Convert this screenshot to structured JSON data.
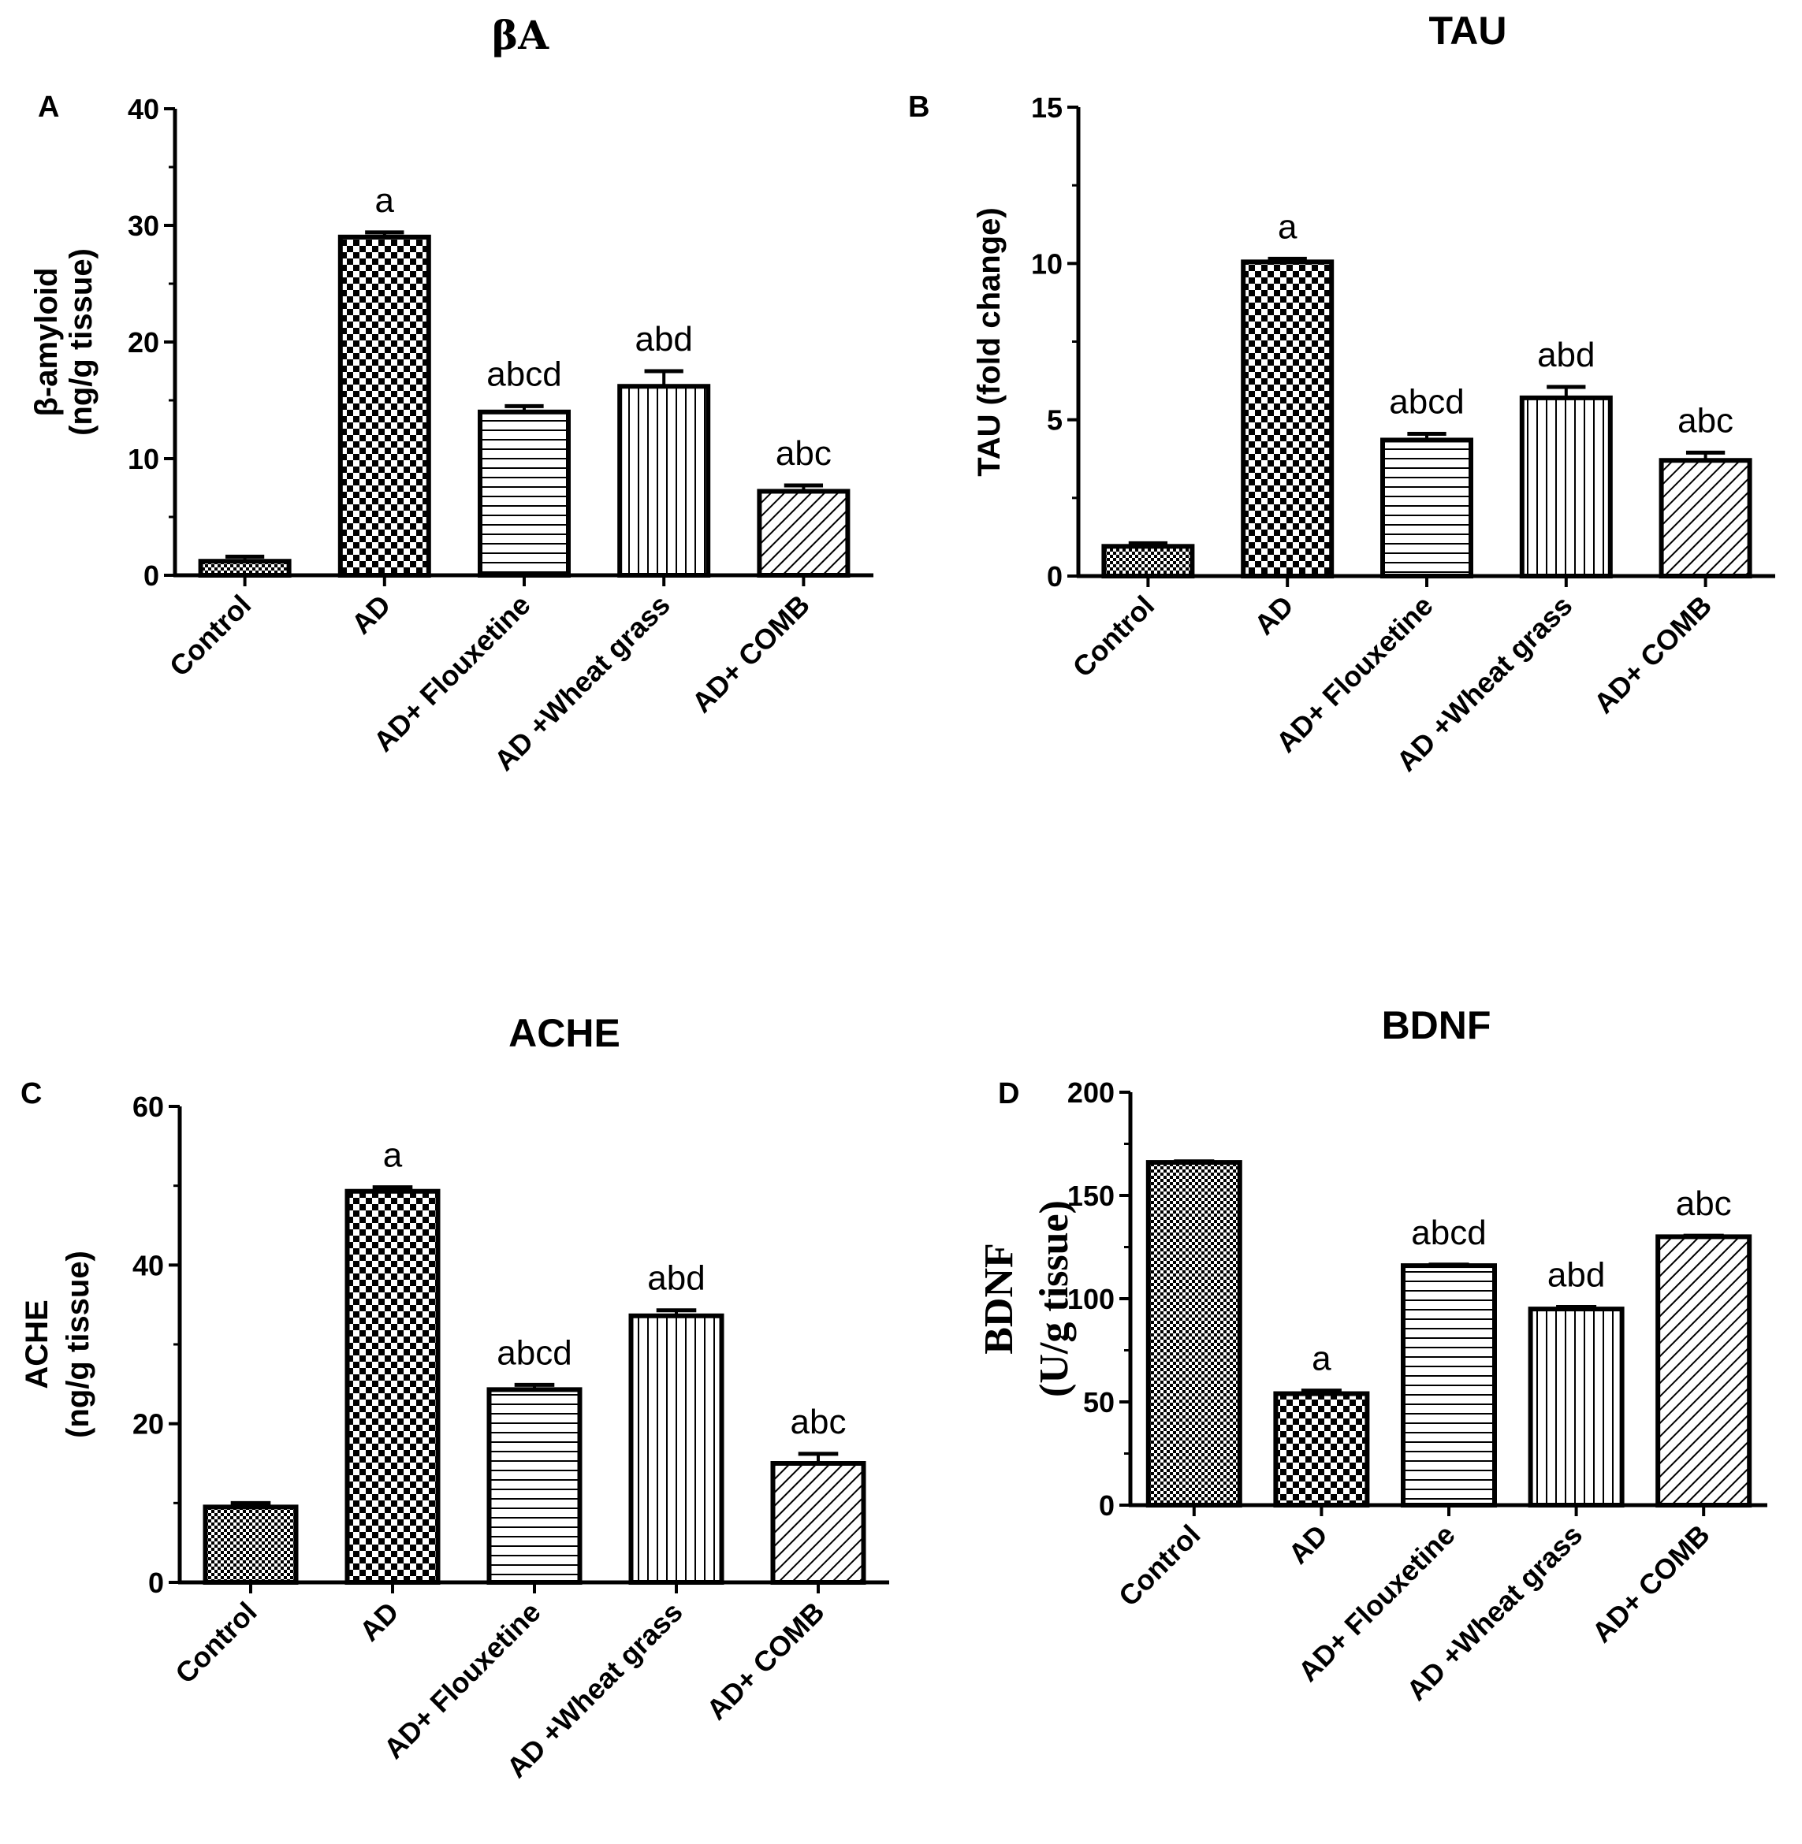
{
  "figure": {
    "panels": [
      "A",
      "B",
      "C",
      "D"
    ]
  },
  "colors": {
    "bar_stroke": "#000000",
    "background": "#ffffff"
  },
  "patterns": {
    "Control": "fine-checker",
    "AD": "checker",
    "AD+ Flouxetine": "horizontal-lines",
    "AD +Wheat grass": "vertical-lines",
    "AD+ COMB": "diagonal-lines"
  },
  "chart_data": [
    {
      "panel": "A",
      "type": "bar",
      "title": "βA",
      "ylabel_line1": "β-amyloid",
      "ylabel_line2": "(ng/g tissue)",
      "categories": [
        "Control",
        "AD",
        "AD+ Flouxetine",
        "AD +Wheat grass",
        "AD+ COMB"
      ],
      "values": [
        1.2,
        29.0,
        14.0,
        16.2,
        7.2
      ],
      "errors": [
        0.4,
        0.4,
        0.5,
        1.3,
        0.5
      ],
      "significance": [
        "",
        "a",
        "abcd",
        "abd",
        "abc"
      ],
      "ylim": [
        0,
        40
      ],
      "yticks": [
        0,
        10,
        20,
        30,
        40
      ],
      "ytick_labels": [
        "0",
        "10",
        "20",
        "30",
        "40"
      ]
    },
    {
      "panel": "B",
      "type": "bar",
      "title": "TAU",
      "ylabel_line1": "TAU (fold change)",
      "ylabel_line2": "",
      "categories": [
        "Control",
        "AD",
        "AD+ Flouxetine",
        "AD +Wheat grass",
        "AD+ COMB"
      ],
      "values": [
        0.95,
        10.05,
        4.35,
        5.7,
        3.7
      ],
      "errors": [
        0.1,
        0.1,
        0.2,
        0.35,
        0.25
      ],
      "significance": [
        "",
        "a",
        "abcd",
        "abd",
        "abc"
      ],
      "ylim": [
        0,
        15
      ],
      "yticks": [
        0,
        5,
        10,
        15
      ],
      "ytick_labels": [
        "0",
        "5",
        "10",
        "15"
      ]
    },
    {
      "panel": "C",
      "type": "bar",
      "title": "ACHE",
      "ylabel_line1": "ACHE",
      "ylabel_line2": "(ng/g tissue)",
      "categories": [
        "Control",
        "AD",
        "AD+ Flouxetine",
        "AD +Wheat grass",
        "AD+ COMB"
      ],
      "values": [
        9.5,
        49.3,
        24.3,
        33.6,
        15.0
      ],
      "errors": [
        0.5,
        0.5,
        0.6,
        0.7,
        1.2
      ],
      "significance": [
        "",
        "a",
        "abcd",
        "abd",
        "abc"
      ],
      "ylim": [
        0,
        60
      ],
      "yticks": [
        0,
        20,
        40,
        60
      ],
      "ytick_labels": [
        "0",
        "20",
        "40",
        "60"
      ]
    },
    {
      "panel": "D",
      "type": "bar",
      "title": "BDNF",
      "ylabel_line1": "BDNF",
      "ylabel_line2": "(U/g tissue)",
      "categories": [
        "Control",
        "AD",
        "AD+ Flouxetine",
        "AD +Wheat grass",
        "AD+ COMB"
      ],
      "values": [
        166,
        54,
        116,
        95,
        130
      ],
      "errors": [
        0.5,
        1.5,
        0.5,
        1.0,
        0.5
      ],
      "significance": [
        "",
        "a",
        "abcd",
        "abd",
        "abc"
      ],
      "ylim": [
        0,
        200
      ],
      "yticks": [
        0,
        50,
        100,
        150,
        200
      ],
      "ytick_labels": [
        "0",
        "50",
        "100",
        "150",
        "200"
      ]
    }
  ]
}
